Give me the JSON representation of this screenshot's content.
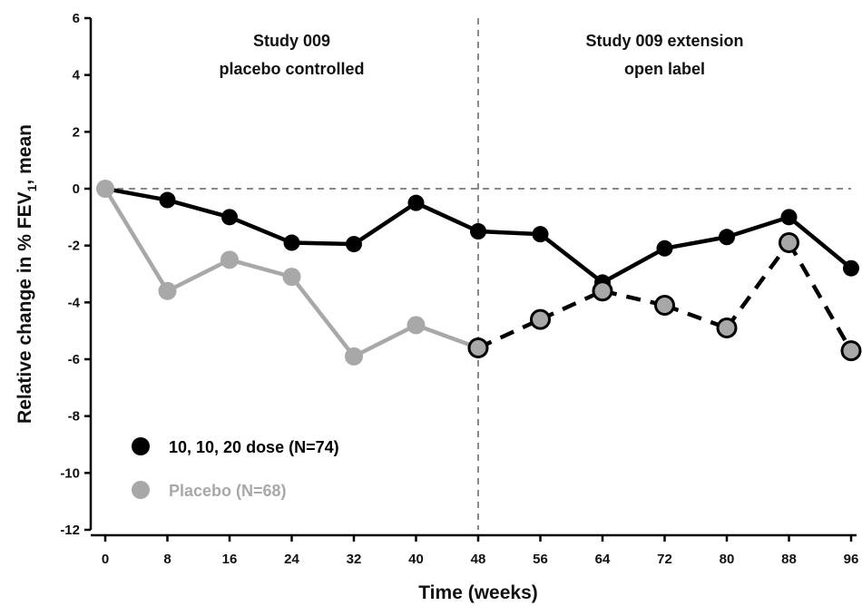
{
  "chart_data": {
    "type": "line",
    "ylabel_prefix": "Relative change in % FEV",
    "ylabel_sub": "1",
    "ylabel_suffix": ", mean",
    "xlabel": "Time (weeks)",
    "ylim": [
      -12,
      6
    ],
    "yticks": [
      6,
      4,
      2,
      0,
      -2,
      -4,
      -6,
      -8,
      -10,
      -12
    ],
    "xticks": [
      0,
      8,
      16,
      24,
      32,
      40,
      48,
      56,
      64,
      72,
      80,
      88,
      96
    ],
    "xlim": [
      0,
      96
    ],
    "reference_line_y": 0,
    "divider_x": 48,
    "annotations": [
      {
        "lines": [
          "Study 009",
          "placebo controlled"
        ],
        "x": 24
      },
      {
        "lines": [
          "Study 009 extension",
          "open label"
        ],
        "x": 72
      }
    ],
    "series": [
      {
        "name": "10, 10, 20 dose (N=74)",
        "color": "#000000",
        "x": [
          0,
          8,
          16,
          24,
          32,
          40,
          48,
          56,
          64,
          72,
          80,
          88,
          96
        ],
        "values": [
          0,
          -0.4,
          -1.0,
          -1.9,
          -1.95,
          -0.5,
          -1.5,
          -1.6,
          -3.3,
          -2.1,
          -1.7,
          -1.0,
          -2.8
        ]
      },
      {
        "name": "Placebo (N=68)",
        "color": "#a8a8a8",
        "dash_from_x": 48,
        "x": [
          0,
          8,
          16,
          24,
          32,
          40,
          48,
          56,
          64,
          72,
          80,
          88,
          96
        ],
        "values": [
          0,
          -3.6,
          -2.5,
          -3.1,
          -5.9,
          -4.8,
          -5.6,
          -4.6,
          -3.6,
          -4.1,
          -4.9,
          -1.9,
          -5.7
        ]
      }
    ]
  }
}
